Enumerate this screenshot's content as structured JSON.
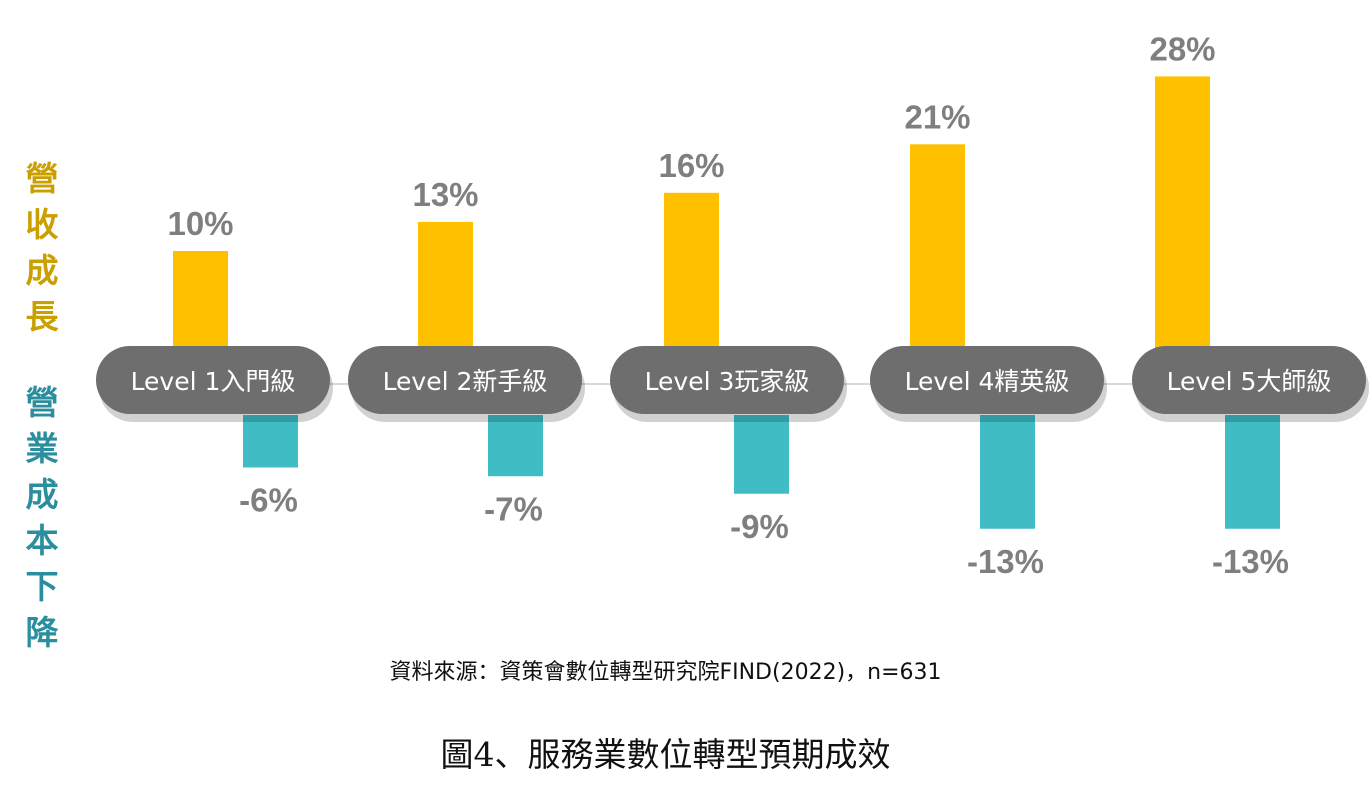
{
  "side_labels": {
    "growth": [
      "營",
      "收",
      "成",
      "長"
    ],
    "cost": [
      "營",
      "業",
      "成",
      "本",
      "下",
      "降"
    ]
  },
  "colors": {
    "growth": "#FFC000",
    "cost": "#40BCC5",
    "pill": "#6E6E6E",
    "value_text": "#7F7F7F",
    "baseline": "#D9D9D9"
  },
  "chart_data": {
    "type": "bar",
    "categories": [
      "Level 1入門級",
      "Level 2新手級",
      "Level 3玩家級",
      "Level 4精英級",
      "Level 5大師級"
    ],
    "series": [
      {
        "values": [
          10,
          13,
          16,
          21,
          28
        ],
        "labels": [
          "10%",
          "13%",
          "16%",
          "21%",
          "28%"
        ]
      },
      {
        "values": [
          -6,
          -7,
          -9,
          -13,
          -13
        ],
        "labels": [
          "-6%",
          "-7%",
          "-9%",
          "-13%",
          "-13%"
        ]
      }
    ],
    "ylim": [
      -13,
      28
    ]
  },
  "source": "資料來源：資策會數位轉型研究院FIND(2022)，n=631",
  "caption": "圖4、服務業數位轉型預期成效"
}
